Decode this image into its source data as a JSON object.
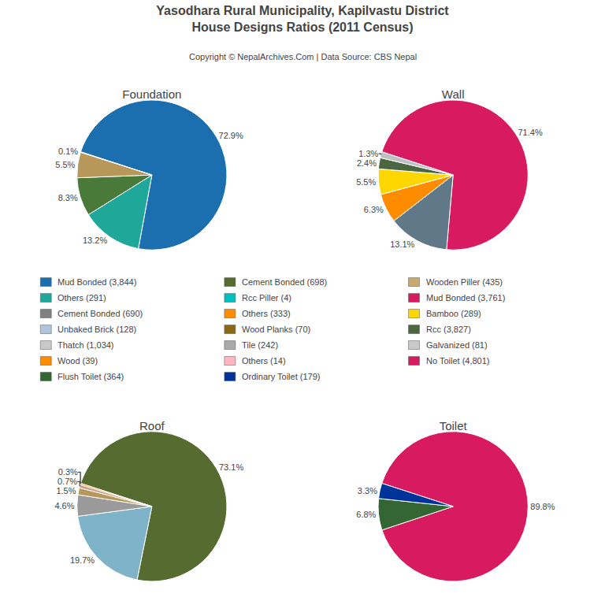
{
  "title": "Yasodhara Rural Municipality, Kapilvastu District",
  "subtitle": "House Designs Ratios (2011 Census)",
  "annotations": [
    "Copyright © NepalArchives.Com | Data Source: CBS Nepal"
  ],
  "series": [
    {
      "name": "Mud Bonded (3,844)",
      "color": "#1B6FAF"
    },
    {
      "name": "Others (291)",
      "color": "#1FA89A"
    },
    {
      "name": "Cement Bonded (690)",
      "color": "#808080"
    },
    {
      "name": "Unbaked Brick (128)",
      "color": "#B0C4DE"
    },
    {
      "name": "Thatch (1,034)",
      "color": "#C8C8C8"
    },
    {
      "name": "Wood (39)",
      "color": "#FF8C00"
    },
    {
      "name": "Flush Toilet (364)",
      "color": "#336633"
    },
    {
      "name": "Cement Bonded (698)",
      "color": "#556B2F"
    },
    {
      "name": "Rcc Piller (4)",
      "color": "#00BFBF"
    },
    {
      "name": "Others (333)",
      "color": "#FF8C00"
    },
    {
      "name": "Wood Planks (70)",
      "color": "#8B6914"
    },
    {
      "name": "Tile (242)",
      "color": "#A9A9A9"
    },
    {
      "name": "Others (14)",
      "color": "#FFB6C1"
    },
    {
      "name": "Ordinary Toilet (179)",
      "color": "#003399"
    },
    {
      "name": "Wooden Piller (435)",
      "color": "#C8A96E"
    },
    {
      "name": "Mud Bonded (3,761)",
      "color": "#D81B60"
    },
    {
      "name": "Bamboo (289)",
      "color": "#FFD700"
    },
    {
      "name": "Rcc (3,827)",
      "color": "#4A6741"
    },
    {
      "name": "Galvanized (81)",
      "color": "#C8C8C8"
    },
    {
      "name": "No Toilet (4,801)",
      "color": "#D81B60"
    }
  ],
  "chart_data": [
    {
      "type": "pie",
      "title": "Foundation",
      "values": [
        72.9,
        13.2,
        8.3,
        5.5,
        0.1
      ],
      "value_labels": [
        "72.9%",
        "13.2%",
        "8.3%",
        "5.5%",
        "0.1%"
      ],
      "colors": [
        "#1B6FAF",
        "#1FA89A",
        "#4A7A3A",
        "#B8975A",
        "#C8C8C8"
      ],
      "data_labels": true
    },
    {
      "type": "pie",
      "title": "Wall",
      "values": [
        71.4,
        13.1,
        6.3,
        5.5,
        2.4,
        1.3
      ],
      "value_labels": [
        "71.4%",
        "13.1%",
        "6.3%",
        "5.5%",
        "2.4%",
        "1.3%"
      ],
      "colors": [
        "#D81B60",
        "#607888",
        "#FF8C00",
        "#FFD700",
        "#4A6741",
        "#C0C0C0"
      ],
      "data_labels": true
    },
    {
      "type": "pie",
      "title": "Roof",
      "values": [
        73.1,
        19.7,
        4.6,
        1.5,
        0.7,
        0.3
      ],
      "value_labels": [
        "73.1%",
        "19.7%",
        "4.6%",
        "1.5%",
        "0.7%",
        "0.3%"
      ],
      "colors": [
        "#556B2F",
        "#7FB3C8",
        "#9A9A9A",
        "#B8975A",
        "#C8A090",
        "#FF8C00"
      ],
      "data_labels": true
    },
    {
      "type": "pie",
      "title": "Toilet",
      "values": [
        89.8,
        6.8,
        3.3
      ],
      "value_labels": [
        "89.8%",
        "6.8%",
        "3.3%"
      ],
      "colors": [
        "#D81B60",
        "#336633",
        "#003399"
      ],
      "data_labels": true
    }
  ]
}
